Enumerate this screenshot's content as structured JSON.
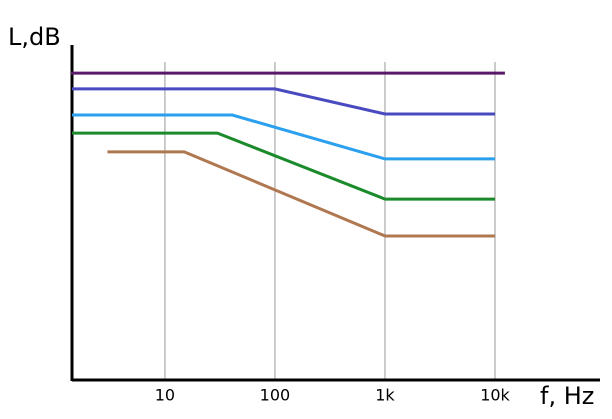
{
  "chart_data": {
    "type": "line",
    "x_label": "f, Hz",
    "y_label": "L,dB",
    "xscale": "log",
    "grid": true,
    "xlim": [
      1.43,
      90000
    ],
    "ylim": [
      0,
      100
    ],
    "xticks": [
      10,
      100,
      {
        "value": 1000,
        "label": "1k"
      },
      {
        "value": 10000,
        "label": "10k"
      }
    ],
    "series": [
      {
        "color": "#5a1a6a",
        "x": [
          1.4,
          12300
        ],
        "values": [
          91.6,
          91.6
        ]
      },
      {
        "color": "#4a4ac0",
        "x": [
          1.43,
          100,
          1000,
          10000
        ],
        "values": [
          86.9,
          86.9,
          79.4,
          79.4
        ]
      },
      {
        "color": "#2aa0ee",
        "x": [
          1.43,
          41,
          1000,
          10000
        ],
        "values": [
          79.1,
          79.1,
          66.0,
          66.0
        ]
      },
      {
        "color": "#1a8a2a",
        "x": [
          1.43,
          30,
          1000,
          10000
        ],
        "values": [
          73.7,
          73.7,
          54.0,
          54.0
        ]
      },
      {
        "color": "#b07850",
        "x": [
          3,
          15,
          1000,
          10000
        ],
        "values": [
          68.1,
          68.1,
          43.0,
          43.0
        ]
      }
    ]
  }
}
